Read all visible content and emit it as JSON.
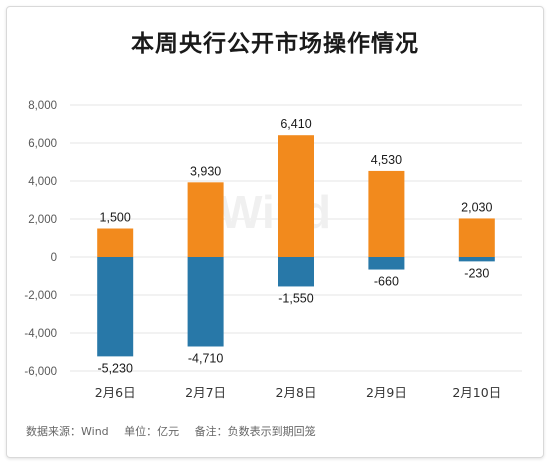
{
  "title": "本周央行公开市场操作情况",
  "footer": {
    "source": "数据来源：Wind",
    "unit": "单位：亿元",
    "note": "备注：负数表示到期回笼"
  },
  "watermark": "Wind",
  "colors": {
    "injection": "#f28a1d",
    "maturity": "#2878a8",
    "grid": "#e6e6e6",
    "axis_text": "#595959",
    "label_text": "#1a1a1a"
  },
  "chart_data": {
    "type": "bar",
    "stacked": true,
    "categories": [
      "2月6日",
      "2月7日",
      "2月8日",
      "2月9日",
      "2月10日"
    ],
    "series": [
      {
        "values": [
          1500,
          3930,
          6410,
          4530,
          2030
        ]
      },
      {
        "values": [
          -5230,
          -4710,
          -1550,
          -660,
          -230
        ]
      }
    ],
    "data_labels": {
      "positive": [
        "1,500",
        "3,930",
        "6,410",
        "4,530",
        "2,030"
      ],
      "negative": [
        "-5,230",
        "-4,710",
        "-1,550",
        "-660",
        "-230"
      ]
    },
    "yticks": [
      8000,
      6000,
      4000,
      2000,
      0,
      -2000,
      -4000,
      -6000
    ],
    "ytick_labels": [
      "8,000",
      "6,000",
      "4,000",
      "2,000",
      "0",
      "-2,000",
      "-4,000",
      "-6,000"
    ],
    "ylim": [
      -6000,
      8000
    ],
    "grid": true,
    "legend": "none"
  }
}
